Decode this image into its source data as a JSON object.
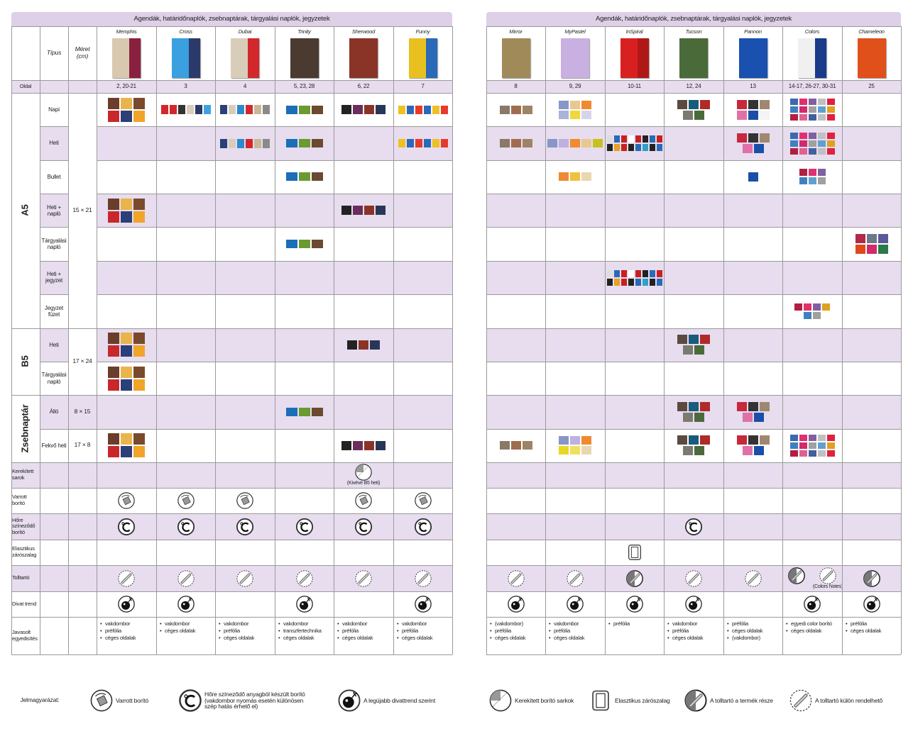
{
  "tables": [
    {
      "title": "Agendák, határidőnaplók, zsebnaptárak, tárgyalási naplók, jegyzetek",
      "products": [
        {
          "name": "Memphis",
          "pages": "2, 20-21",
          "custom": [
            "vakdombor",
            "préfólia",
            "céges oldalak"
          ]
        },
        {
          "name": "Cross",
          "pages": 3,
          "custom": [
            "vakdombor",
            "céges oldalak"
          ]
        },
        {
          "name": "Dubai",
          "pages": 4,
          "custom": [
            "vakdombor",
            "préfólia",
            "céges oldalak"
          ]
        },
        {
          "name": "Trinity",
          "pages": "5, 23, 28",
          "custom": [
            "vakdombor",
            "transzfertechnika",
            "céges oldalak"
          ]
        },
        {
          "name": "Sherwood",
          "pages": "6, 22",
          "custom": [
            "vakdombor",
            "préfólia",
            "céges oldalak"
          ]
        },
        {
          "name": "Funny",
          "pages": 7,
          "custom": [
            "vakdombor",
            "préfólia",
            "céges oldalak"
          ]
        }
      ]
    },
    {
      "title": "Agendák, határidőnaplók, zsebnaptárak, tárgyalási naplók, jegyzetek",
      "products": [
        {
          "name": "Mirror",
          "pages": 8,
          "custom": [
            "(vakdombor)",
            "préfólia",
            "céges oldalak"
          ]
        },
        {
          "name": "MyPastel",
          "pages": "9, 29",
          "custom": [
            "vakdombor",
            "préfólia",
            "céges oldalak"
          ]
        },
        {
          "name": "InSpiral",
          "pages": "10-11",
          "custom": [
            "préfólia"
          ]
        },
        {
          "name": "Tucson",
          "pages": "12, 24",
          "custom": [
            "vakdombor",
            "préfólia",
            "céges oldalak"
          ]
        },
        {
          "name": "Pannon",
          "pages": 13,
          "custom": [
            "préfólia",
            "céges oldalak",
            "(vakdombor)"
          ]
        },
        {
          "name": "Colors",
          "pages": "14-17, 26-27, 30-31",
          "custom": [
            "egyedi color borító",
            "céges oldalak"
          ]
        },
        {
          "name": "Chameleon",
          "pages": 25,
          "custom": [
            "préfólia",
            "céges oldalak"
          ]
        }
      ]
    }
  ],
  "columns": {
    "type": "Típus",
    "size": "Méret (cm)",
    "page": "Oldal"
  },
  "groups": [
    {
      "label": "A5",
      "size": "15 × 21",
      "rows": [
        {
          "name": "Napi"
        },
        {
          "name": "Heti"
        },
        {
          "name": "Bullet"
        },
        {
          "name": "Heti + napló"
        },
        {
          "name": "Tárgyalási napló"
        },
        {
          "name": "Heti + jegyzet"
        },
        {
          "name": "Jegyzet füzet"
        }
      ]
    },
    {
      "label": "B5",
      "size": "17 × 24",
      "rows": [
        {
          "name": "Heti"
        },
        {
          "name": "Tárgyalási napló"
        }
      ]
    },
    {
      "label": "Zsebnaptár",
      "rows": [
        {
          "name": "Álló",
          "size": "8 × 15"
        },
        {
          "name": "Fekvő heti",
          "size": "17 × 8"
        }
      ]
    }
  ],
  "features": [
    "Kerekített sarok",
    "Varrott borító",
    "Hőre színeződő borító",
    "Elasztikus zárószalag",
    "Tolltartó",
    "Divat trend",
    "Javasolt egyedisítés"
  ],
  "notes": [
    "(Kivéve B5 heti)",
    "(Colors Notes)"
  ],
  "legend": {
    "title": "Jelmagyarázat:",
    "items": [
      "Varrott borító",
      "Hőre színeződő anyagból készült borító (vakdombor nyomás esetén különösen szép hatás érhető el)",
      "A legújabb divattrend szerint",
      "Kerekített borító sarkok",
      "Elasztikus zárószalag",
      "A tolltartó a termék része",
      "A tolltartó külön rendelhető"
    ]
  }
}
